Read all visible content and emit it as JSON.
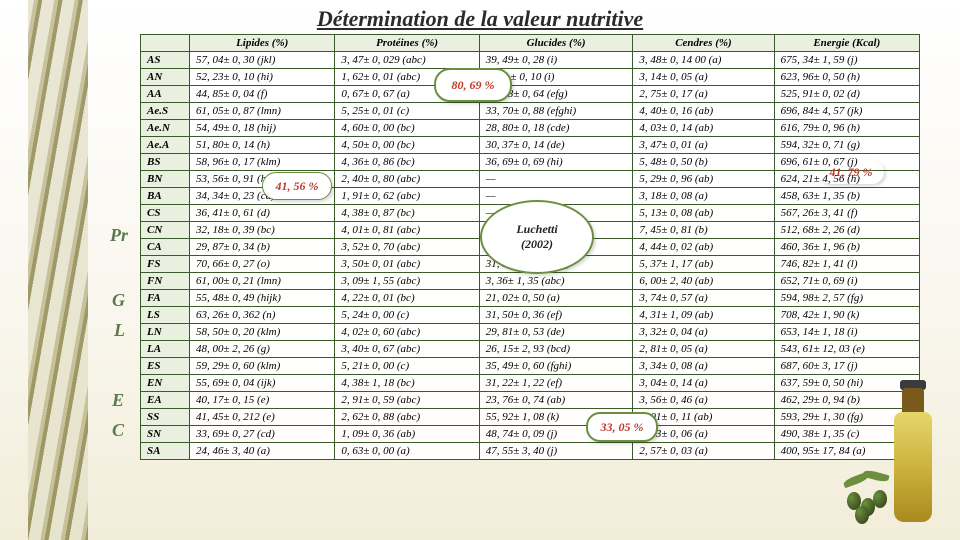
{
  "title": "Détermination de la valeur nutritive",
  "columns": [
    "",
    "Lipides (%)",
    "Protéines (%)",
    "Glucides (%)",
    "Cendres (%)",
    "Energie (Kcal)"
  ],
  "rows": [
    [
      "AS",
      "57, 04± 0, 30 (jkl)",
      "3, 47± 0, 029 (abc)",
      "39, 49± 0, 28 (i)",
      "3, 48± 0, 14 00 (a)",
      "675, 34± 1, 59 (j)"
    ],
    [
      "AN",
      "52, 23± 0, 10 (hi)",
      "1, 62± 0, 01 (abc)",
      "39, 3 ± 0, 10 (i)",
      "3, 14± 0, 05 (a)",
      "623, 96± 0, 50 (h)"
    ],
    [
      "AA",
      "44, 85± 0, 04 (f)",
      "0, 67± 0, 67 (a)",
      "51, 88± 0, 64 (efg)",
      "2, 75± 0, 17 (a)",
      "525, 91± 0, 02 (d)"
    ],
    [
      "Ae.S",
      "61, 05± 0, 87 (lmn)",
      "5, 25± 0, 01 (c)",
      "33, 70± 0, 88 (efghi)",
      "4, 40± 0, 16 (ab)",
      "696, 84± 4, 57 (jk)"
    ],
    [
      "Ae.N",
      "54, 49± 0, 18 (hij)",
      "4, 60± 0, 00 (bc)",
      "28, 80± 0, 18 (cde)",
      "4, 03± 0, 14 (ab)",
      "616, 79± 0, 96 (h)"
    ],
    [
      "Ae.A",
      "51, 80± 0, 14 (h)",
      "4, 50± 0, 00 (bc)",
      "30, 37± 0, 14 (de)",
      "3, 47± 0, 01 (a)",
      "594, 32± 0, 71 (g)"
    ],
    [
      "BS",
      "58, 96± 0, 17 (klm)",
      "4, 36± 0, 86 (bc)",
      "36, 69± 0, 69 (hi)",
      "5, 48± 0, 50 (b)",
      "696, 61± 0, 67 (j)"
    ],
    [
      "BN",
      "53, 56± 0, 91 (hij)",
      "2, 40± 0, 80 (abc)",
      "—",
      "5, 29± 0, 96 (ab)",
      "624, 21± 4, 56 (h)"
    ],
    [
      "BA",
      "34, 34± 0, 23 (cd)",
      "1, 91± 0, 62 (abc)",
      "—",
      "3, 18± 0, 08 (a)",
      "458, 63± 1, 35 (b)"
    ],
    [
      "CS",
      "36, 41± 0, 61 (d)",
      "4, 38± 0, 87 (bc)",
      "—",
      "5, 13± 0, 08 (ab)",
      "567, 26± 3, 41 (f)"
    ],
    [
      "CN",
      "32, 18± 0, 39 (bc)",
      "4, 01± 0, 81 (abc)",
      "—",
      "7, 45± 0, 81 (b)",
      "512, 68± 2, 26 (d)"
    ],
    [
      "CA",
      "29, 87± 0, 34 (b)",
      "3, 52± 0, 70 (abc)",
      "—",
      "4, 44± 0, 02 (ab)",
      "460, 36± 1, 96 (b)"
    ],
    [
      "FS",
      "70, 66± 0, 27 (o)",
      "3, 50± 0, 01 (abc)",
      "31, 50± 0, 36 (bcd)",
      "5, 37± 1, 17 (ab)",
      "746, 82± 1, 41 (l)"
    ],
    [
      "FN",
      "61, 00± 0, 21 (lmn)",
      "3, 09± 1, 55 (abc)",
      "3, 36± 1, 35 (abc)",
      "6, 00± 2, 40 (ab)",
      "652, 71± 0, 69 (i)"
    ],
    [
      "FA",
      "55, 48± 0, 49 (hijk)",
      "4, 22± 0, 01 (bc)",
      "21, 02± 0, 50 (a)",
      "3, 74± 0, 57 (a)",
      "594, 98± 2, 57 (fg)"
    ],
    [
      "LS",
      "63, 26± 0, 362 (n)",
      "5, 24± 0, 00 (c)",
      "31, 50± 0, 36 (ef)",
      "4, 31± 1, 09 (ab)",
      "708, 42± 1, 90 (k)"
    ],
    [
      "LN",
      "58, 50± 0, 20 (klm)",
      "4, 02± 0, 60 (abc)",
      "29, 81± 0, 53 (de)",
      "3, 32± 0, 04 (a)",
      "653, 14± 1, 18 (i)"
    ],
    [
      "LA",
      "48, 00± 2, 26 (g)",
      "3, 40± 0, 67 (abc)",
      "26, 15± 2, 93 (bcd)",
      "2, 81± 0, 05 (a)",
      "543, 61± 12, 03 (e)"
    ],
    [
      "ES",
      "59, 29± 0, 60 (klm)",
      "5, 21± 0, 00 (c)",
      "35, 49± 0, 60 (fghi)",
      "3, 34± 0, 08 (a)",
      "687, 60± 3, 17 (j)"
    ],
    [
      "EN",
      "55, 69± 0, 04 (ijk)",
      "4, 38± 1, 18 (bc)",
      "31, 22± 1, 22 (ef)",
      "3, 04± 0, 14 (a)",
      "637, 59± 0, 50 (hi)"
    ],
    [
      "EA",
      "40, 17± 0, 15 (e)",
      "2, 91± 0, 59 (abc)",
      "23, 76± 0, 74 (ab)",
      "3, 56± 0, 46 (a)",
      "462, 29± 0, 94 (b)"
    ],
    [
      "SS",
      "41, 45± 0, 212 (e)",
      "2, 62± 0, 88 (abc)",
      "55, 92± 1, 08 (k)",
      "4, 01± 0, 11 (ab)",
      "593, 29± 1, 30 (fg)"
    ],
    [
      "SN",
      "33, 69± 0, 27 (cd)",
      "1, 09± 0, 36 (ab)",
      "48, 74± 0, 09 (j)",
      "2, 93± 0, 06 (a)",
      "490, 38± 1, 35 (c)"
    ],
    [
      "SA",
      "24, 46± 3, 40 (a)",
      "0, 63± 0, 00 (a)",
      "47, 55± 3, 40 (j)",
      "2, 57± 0, 03 (a)",
      "400, 95± 17, 84 (a)"
    ]
  ],
  "side_labels": {
    "pr": "Pr",
    "g": "G",
    "l": "L",
    "e": "E",
    "c": "C"
  },
  "callouts": {
    "c1": "80, 69 %",
    "c2_a": "Luchetti",
    "c2_b": "(2002)",
    "c3": "41, 56 %",
    "c4": "41, 79 %",
    "c5": "33, 05 %"
  },
  "colors": {
    "table_border": "#3a5a2a",
    "header_bg": "#eaf0df",
    "red": "#c0392b",
    "olive_green": "#6b8f3f"
  }
}
